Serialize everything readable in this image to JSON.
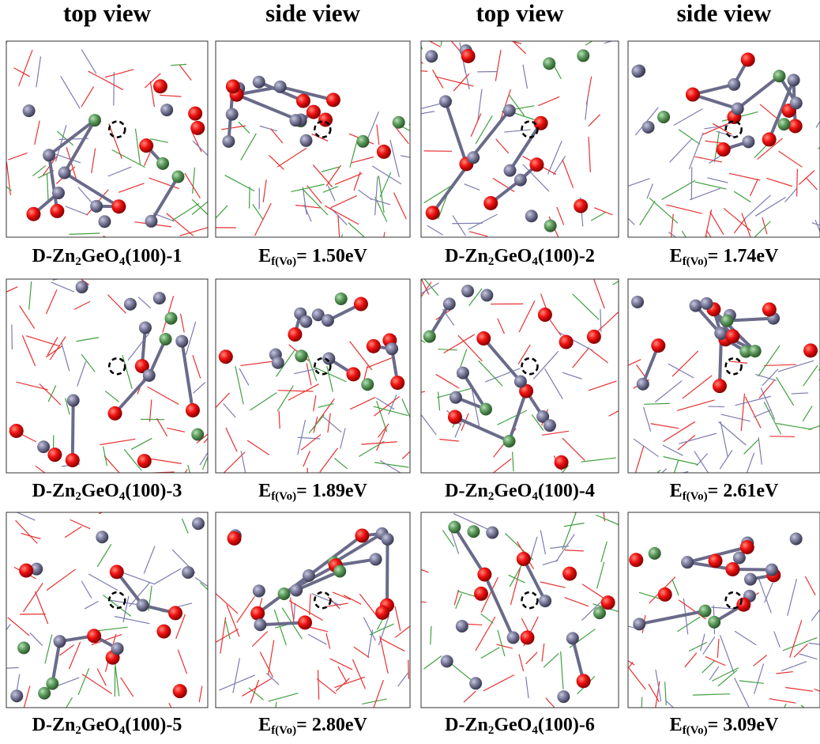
{
  "headers": [
    "top view",
    "side view",
    "top view",
    "side view"
  ],
  "rows": [
    [
      [
        "D-Zn",
        "2",
        "GeO",
        "4",
        "(100)-1"
      ],
      [
        "E",
        "f(Vo)",
        "= 1.50eV"
      ],
      [
        "D-Zn",
        "2",
        "GeO",
        "4",
        "(100)-2"
      ],
      [
        "E",
        "f(Vo)",
        "= 1.74eV"
      ]
    ],
    [
      [
        "D-Zn",
        "2",
        "GeO",
        "4",
        "(100)-3"
      ],
      [
        "E",
        "f(Vo)",
        "= 1.89eV"
      ],
      [
        "D-Zn",
        "2",
        "GeO",
        "4",
        "(100)-4"
      ],
      [
        "E",
        "f(Vo)",
        "= 2.61eV"
      ]
    ],
    [
      [
        "D-Zn",
        "2",
        "GeO",
        "4",
        "(100)-5"
      ],
      [
        "E",
        "f(Vo)",
        "= 2.80eV"
      ],
      [
        "D-Zn",
        "2",
        "GeO",
        "4",
        "(100)-6"
      ],
      [
        "E",
        "f(Vo)",
        "= 3.09eV"
      ]
    ]
  ]
}
